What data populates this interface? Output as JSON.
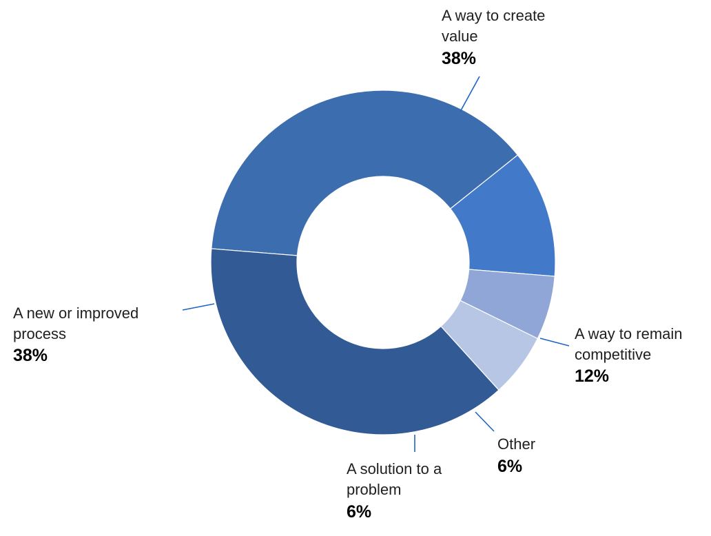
{
  "chart_data": {
    "type": "pie",
    "variant": "donut",
    "title": "",
    "unit": "%",
    "legend": "none",
    "slices": [
      {
        "label": "A way to create value",
        "value": 38,
        "value_label": "38%",
        "color": "#3c6daf"
      },
      {
        "label": "A way to remain competitive",
        "value": 12,
        "value_label": "12%",
        "color": "#4279c8"
      },
      {
        "label": "Other",
        "value": 6,
        "value_label": "6%",
        "color": "#8fa6d6"
      },
      {
        "label": "A solution to a problem",
        "value": 6,
        "value_label": "6%",
        "color": "#b8c6e5"
      },
      {
        "label": "A new or improved process",
        "value": 38,
        "value_label": "38%",
        "color": "#325b96"
      }
    ],
    "slice_border_color": "#ffffff",
    "leader_line_color": "#1d63c4"
  }
}
